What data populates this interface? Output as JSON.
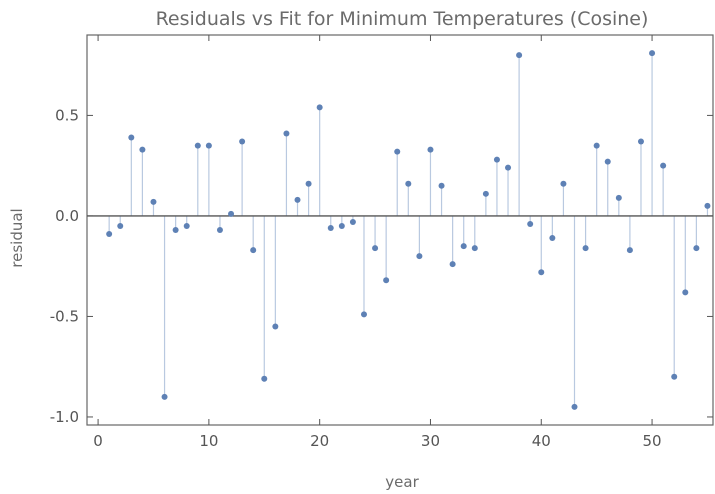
{
  "chart_data": {
    "type": "scatter",
    "style": "stem",
    "title": "Residuals vs Fit for Minimum Temperatures (Cosine)",
    "xlabel": "year",
    "ylabel": "residual",
    "xlim": [
      -1,
      55.5
    ],
    "ylim": [
      -1.04,
      0.9
    ],
    "xticks": [
      0,
      10,
      20,
      30,
      40,
      50
    ],
    "xtick_labels": [
      "0",
      "10",
      "20",
      "30",
      "40",
      "50"
    ],
    "yticks": [
      -1.0,
      -0.5,
      0.0,
      0.5
    ],
    "ytick_labels": [
      "-1.0",
      "-0.5",
      "0.0",
      "0.5"
    ],
    "grid": false,
    "colors": {
      "point": "#5e81b5",
      "stem": "#b9c9e0",
      "axis": "#555555",
      "frame": "#666666"
    },
    "series": [
      {
        "x": [
          1,
          2,
          3,
          4,
          5,
          6,
          7,
          8,
          9,
          10,
          11,
          12,
          13,
          14,
          15,
          16,
          17,
          18,
          19,
          20,
          21,
          22,
          23,
          24,
          25,
          26,
          27,
          28,
          29,
          30,
          31,
          32,
          33,
          34,
          35,
          36,
          37,
          38,
          39,
          40,
          41,
          42,
          43,
          44,
          45,
          46,
          47,
          48,
          49,
          50,
          51,
          52,
          53,
          54,
          55
        ],
        "y": [
          -0.09,
          -0.05,
          0.39,
          0.33,
          0.07,
          -0.9,
          -0.07,
          -0.05,
          0.35,
          0.35,
          -0.07,
          0.01,
          0.37,
          -0.17,
          -0.81,
          -0.55,
          0.41,
          0.08,
          0.16,
          0.54,
          -0.06,
          -0.05,
          -0.03,
          -0.49,
          -0.16,
          -0.32,
          0.32,
          0.16,
          -0.2,
          0.33,
          0.15,
          -0.24,
          -0.15,
          -0.16,
          0.11,
          0.28,
          0.24,
          0.8,
          -0.04,
          -0.28,
          -0.11,
          0.16,
          -0.95,
          -0.16,
          0.35,
          0.27,
          0.09,
          -0.17,
          0.37,
          0.81,
          0.25,
          -0.8,
          -0.38,
          -0.16,
          0.05
        ]
      }
    ]
  }
}
